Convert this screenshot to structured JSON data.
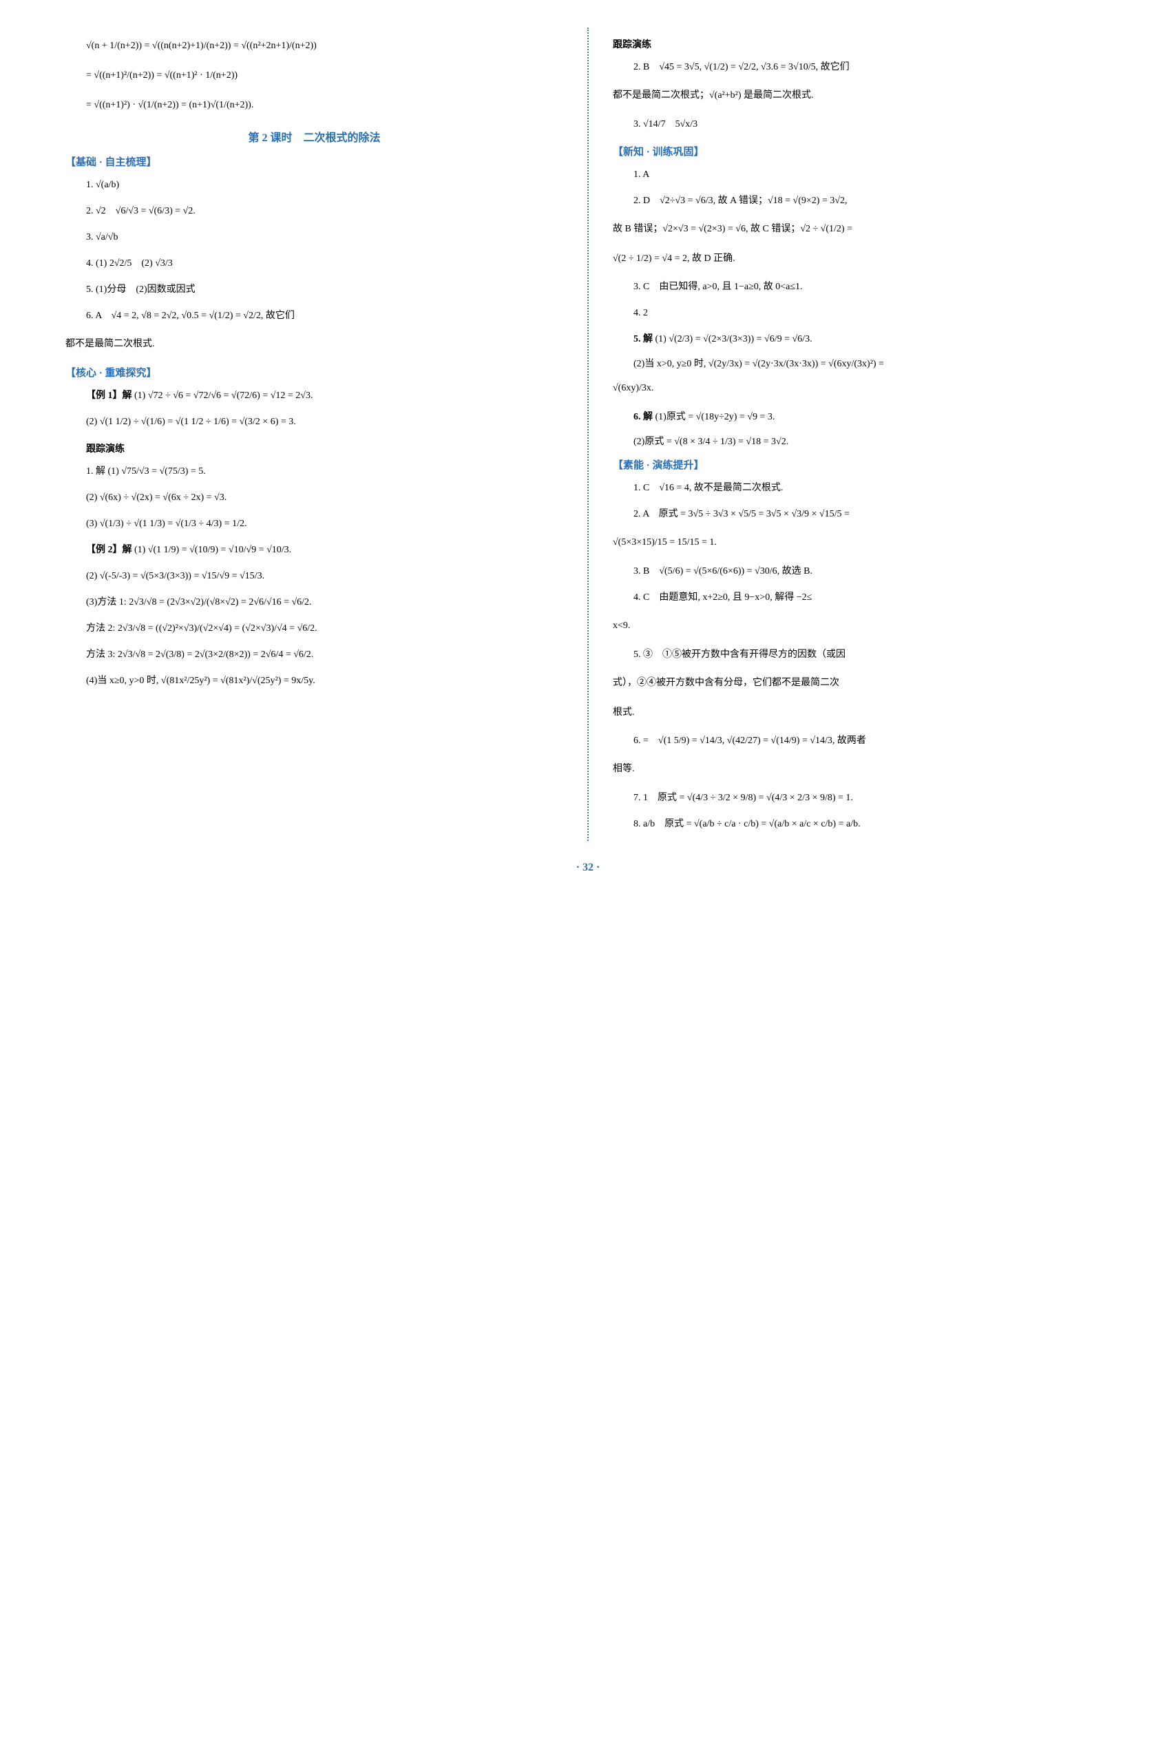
{
  "colors": {
    "heading_blue": "#2a6fb5",
    "divider_blue": "#3a7fc4",
    "text_black": "#000000",
    "background": "#ffffff"
  },
  "typography": {
    "body_font": "SimSun, serif",
    "math_font": "Times New Roman, serif",
    "body_size": 14,
    "heading_size": 16
  },
  "left": {
    "eq1_line1": "√(n + 1/(n+2)) = √((n(n+2)+1)/(n+2)) = √((n²+2n+1)/(n+2))",
    "eq1_line2": "= √((n+1)²/(n+2)) = √((n+1)² · 1/(n+2))",
    "eq1_line3": "= √((n+1)²) · √(1/(n+2)) = (n+1)√(1/(n+2)).",
    "lesson_title": "第 2 课时　二次根式的除法",
    "sec1_title": "【基础 · 自主梳理】",
    "sec1_items": [
      "1. √(a/b)",
      "2. √2　√6/√3 = √(6/3) = √2.",
      "3. √a/√b",
      "4. (1) 2√2/5　(2) √3/3",
      "5. (1)分母　(2)因数或因式",
      "6. A　√4 = 2, √8 = 2√2, √0.5 = √(1/2) = √2/2, 故它们"
    ],
    "sec1_tail": "都不是最简二次根式.",
    "sec2_title": "【核心 · 重难探究】",
    "ex1_label": "【例 1】解",
    "ex1_part1": "(1) √72 ÷ √6 = √72/√6 = √(72/6) = √12 = 2√3.",
    "ex1_part2": "(2) √(1 1/2) ÷ √(1/6) = √(1 1/2 ÷ 1/6) = √(3/2 × 6) = 3.",
    "track1_title": "跟踪演练",
    "track1_items": [
      "1. 解 (1) √75/√3 = √(75/3) = 5.",
      "(2) √(6x) ÷ √(2x) = √(6x ÷ 2x) = √3.",
      "(3) √(1/3) ÷ √(1 1/3) = √(1/3 ÷ 4/3) = 1/2."
    ],
    "ex2_label": "【例 2】解",
    "ex2_part1": "(1) √(1 1/9) = √(10/9) = √10/√9 = √10/3.",
    "ex2_part2": "(2) √(-5/-3) = √(5×3/(3×3)) = √15/√9 = √15/3.",
    "ex2_part3_m1": "(3)方法 1: 2√3/√8 = (2√3×√2)/(√8×√2) = 2√6/√16 = √6/2.",
    "ex2_part3_m2": "方法 2: 2√3/√8 = ((√2)²×√3)/(√2×√4) = (√2×√3)/√4 = √6/2.",
    "ex2_part3_m3": "方法 3: 2√3/√8 = 2√(3/8) = 2√(3×2/(8×2)) = 2√6/4 = √6/2.",
    "ex2_part4": "(4)当 x≥0, y>0 时, √(81x²/25y²) = √(81x²)/√(25y²) = 9x/5y."
  },
  "right": {
    "track2_title": "跟踪演练",
    "track2_items": [
      "2. B　√45 = 3√5, √(1/2) = √2/2, √3.6 = 3√10/5, 故它们"
    ],
    "track2_tail1": "都不是最简二次根式；√(a²+b²) 是最简二次根式.",
    "track2_item3": "3. √14/7　5√x/3",
    "sec3_title": "【新知 · 训练巩固】",
    "sec3_items": [
      "1. A",
      "2. D　√2÷√3 = √6/3, 故 A 错误；√18 = √(9×2) = 3√2,"
    ],
    "sec3_tail2a": "故 B 错误；√2×√3 = √(2×3) = √6, 故 C 错误；√2 ÷ √(1/2) =",
    "sec3_tail2b": "√(2 ÷ 1/2) = √4 = 2, 故 D 正确.",
    "sec3_item3": "3. C　由已知得, a>0, 且 1−a≥0, 故 0<a≤1.",
    "sec3_item4": "4. 2",
    "sec3_item5_label": "5. 解",
    "sec3_item5_part1": "(1) √(2/3) = √(2×3/(3×3)) = √6/9 = √6/3.",
    "sec3_item5_part2": "(2)当 x>0, y≥0 时, √(2y/3x) = √(2y·3x/(3x·3x)) = √(6xy/(3x)²) =",
    "sec3_item5_tail": "√(6xy)/3x.",
    "sec3_item6_label": "6. 解",
    "sec3_item6_part1": "(1)原式 = √(18y÷2y) = √9 = 3.",
    "sec3_item6_part2": "(2)原式 = √(8 × 3/4 ÷ 1/3) = √18 = 3√2.",
    "sec4_title": "【素能 · 演练提升】",
    "sec4_items": [
      "1. C　√16 = 4, 故不是最简二次根式.",
      "2. A　原式 = 3√5 ÷ 3√3 × √5/5 = 3√5 × √3/9 × √15/5 ="
    ],
    "sec4_tail2": "√(5×3×15)/15 = 15/15 = 1.",
    "sec4_item3": "3. B　√(5/6) = √(5×6/(6×6)) = √30/6, 故选 B.",
    "sec4_item4": "4. C　由题意知, x+2≥0, 且 9−x>0, 解得 −2≤",
    "sec4_item4_tail": "x<9.",
    "sec4_item5": "5. ③　①⑤被开方数中含有开得尽方的因数（或因",
    "sec4_item5_tail": "式），②④被开方数中含有分母，它们都不是最简二次",
    "sec4_item5_tail2": "根式.",
    "sec4_item6": "6. =　√(1 5/9) = √14/3, √(42/27) = √(14/9) = √14/3, 故两者",
    "sec4_item6_tail": "相等.",
    "sec4_item7": "7. 1　原式 = √(4/3 ÷ 3/2 × 9/8) = √(4/3 × 2/3 × 9/8) = 1.",
    "sec4_item8": "8. a/b　原式 = √(a/b ÷ c/a · c/b) = √(a/b × a/c × c/b) = a/b."
  },
  "page_number": "· 32 ·"
}
